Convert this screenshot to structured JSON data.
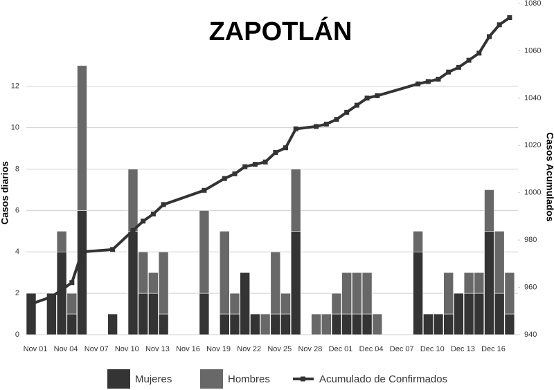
{
  "chart_data": {
    "type": "bar",
    "title": "ZAPOTLÁN",
    "y_label": "Casos diarios",
    "y2_label": "Casos Acumulados",
    "categories": [
      "Nov 01",
      null,
      null,
      "Nov 04",
      null,
      null,
      "Nov 07",
      null,
      null,
      "Nov 10",
      null,
      null,
      "Nov 13",
      null,
      null,
      "Nov 16",
      null,
      null,
      "Nov 19",
      null,
      null,
      "Nov 22",
      null,
      null,
      "Nov 25",
      null,
      null,
      "Nov 28",
      null,
      null,
      "Dec 01",
      null,
      null,
      "Dec 04",
      null,
      null,
      "Dec 07",
      null,
      null,
      "Dec 10",
      null,
      null,
      "Dec 13",
      null,
      null,
      "Dec 16",
      null,
      null
    ],
    "series": [
      {
        "name": "Mujeres",
        "color": "#343434",
        "values": [
          2,
          0,
          2,
          4,
          1,
          6,
          0,
          0,
          1,
          0,
          5,
          2,
          2,
          1,
          0,
          0,
          0,
          2,
          0,
          1,
          1,
          3,
          1,
          0,
          1,
          1,
          5,
          0,
          0,
          0,
          1,
          1,
          1,
          1,
          0,
          0,
          0,
          0,
          4,
          1,
          1,
          1,
          2,
          2,
          2,
          5,
          2,
          1
        ]
      },
      {
        "name": "Hombres",
        "color": "#686868",
        "values": [
          0,
          0,
          0,
          1,
          1,
          7,
          0,
          0,
          0,
          0,
          3,
          2,
          1,
          3,
          0,
          0,
          0,
          4,
          0,
          4,
          1,
          0,
          0,
          1,
          3,
          1,
          3,
          0,
          1,
          1,
          1,
          2,
          2,
          2,
          1,
          0,
          0,
          0,
          1,
          0,
          0,
          2,
          0,
          1,
          1,
          2,
          3,
          2
        ]
      },
      {
        "name": "Acumulado de Confirmados",
        "color": "#333333",
        "type": "line",
        "axis": "y2",
        "values": [
          953,
          null,
          956,
          959,
          962,
          975,
          null,
          null,
          976,
          null,
          984,
          988,
          991,
          995,
          null,
          null,
          null,
          1001,
          null,
          1006,
          1008,
          1011,
          1012,
          1013,
          1017,
          1019,
          1027,
          null,
          1028,
          1029,
          1031,
          1034,
          1037,
          1040,
          1041,
          null,
          null,
          null,
          1046,
          1047,
          1048,
          1051,
          1053,
          1056,
          1059,
          1066,
          1071,
          1074
        ]
      }
    ],
    "ylim": [
      0,
      16
    ],
    "yticks": [
      0,
      2,
      4,
      6,
      8,
      10,
      12
    ],
    "y2lim": [
      940,
      1080
    ],
    "y2ticks": [
      940,
      960,
      980,
      1000,
      1020,
      1040,
      1060,
      1080
    ],
    "grid": true,
    "stacked": true,
    "legend": "bottom"
  }
}
